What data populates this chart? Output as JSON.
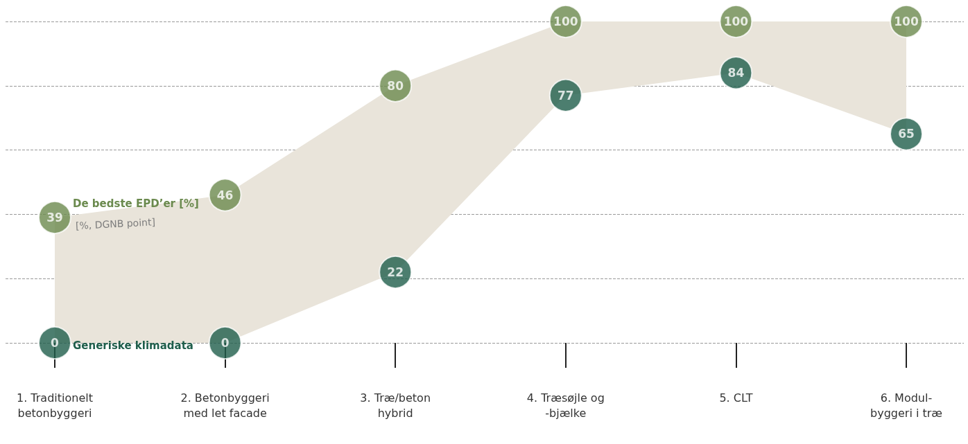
{
  "chart_data": {
    "type": "scatter",
    "categories": [
      "1. Traditionelt\nbetonbyggeri",
      "2. Betonbyggeri\nmed let facade",
      "3. Træ/beton\nhybrid",
      "4. Træsøjle og\n-bjælke",
      "5. CLT",
      "6. Modul-\nbyggeri i træ"
    ],
    "series": [
      {
        "name": "De bedste EPD’er [%]",
        "color": "#6b8a4e",
        "values": [
          39,
          46,
          80,
          100,
          100,
          100
        ],
        "lower": [
          0,
          0,
          22,
          77,
          84,
          65
        ],
        "upper": [
          39,
          46,
          80,
          100,
          100,
          100
        ]
      },
      {
        "name": "Generiske klimadata",
        "color": "#1f5e4b",
        "values": [
          0,
          0,
          22,
          77,
          84,
          65
        ]
      }
    ],
    "annotations": [
      "[%, DGNB point]"
    ],
    "ylim": [
      0,
      100
    ],
    "yticks": [
      0,
      20,
      40,
      60,
      80,
      100
    ],
    "tick_labels": "x",
    "grid": "y",
    "legend": false,
    "data_labels": true,
    "marker": "circle"
  }
}
